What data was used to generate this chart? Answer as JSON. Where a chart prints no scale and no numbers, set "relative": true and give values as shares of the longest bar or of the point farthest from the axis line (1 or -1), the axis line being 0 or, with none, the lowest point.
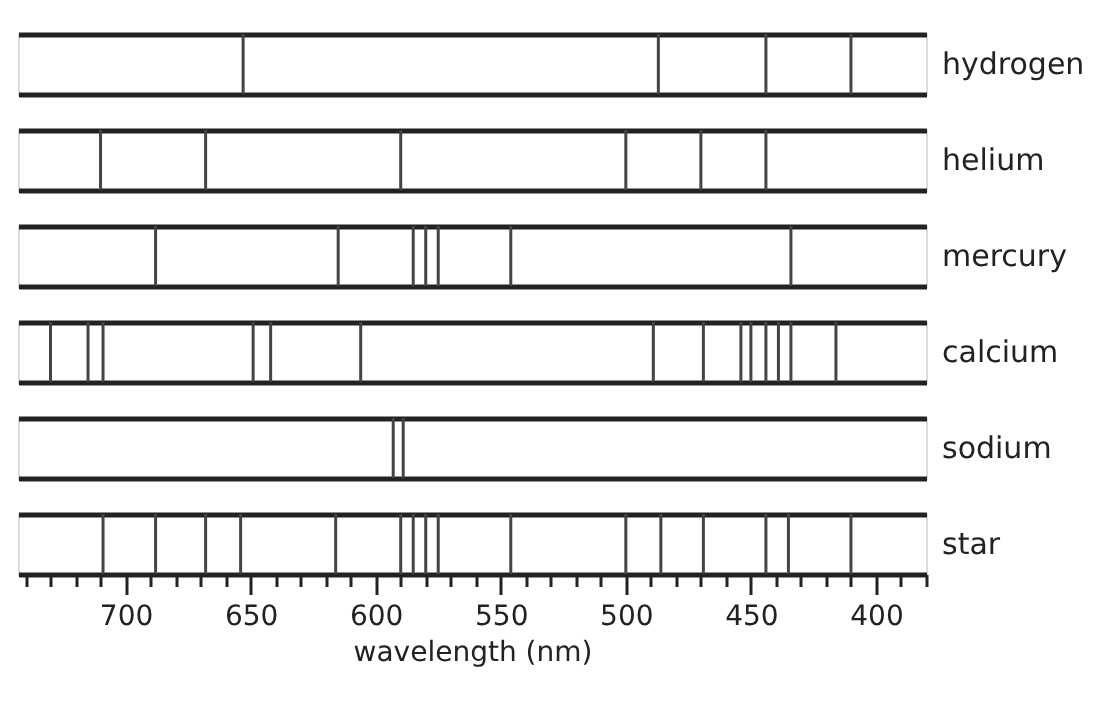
{
  "chart_data": [
    {
      "type": "bar",
      "relative": true,
      "xlim": [
        743,
        380
      ],
      "tick_labels": false,
      "x": [
        653,
        487,
        444,
        410
      ],
      "series": [
        {
          "name": "hydrogen",
          "color": "#444444",
          "values": [
            1,
            1,
            1,
            1
          ]
        }
      ]
    },
    {
      "type": "bar",
      "relative": true,
      "xlim": [
        743,
        380
      ],
      "tick_labels": false,
      "x": [
        710,
        668,
        590,
        500,
        470,
        444
      ],
      "series": [
        {
          "name": "helium",
          "color": "#444444",
          "values": [
            1,
            1,
            1,
            1,
            1,
            1
          ]
        }
      ]
    },
    {
      "type": "bar",
      "relative": true,
      "xlim": [
        743,
        380
      ],
      "tick_labels": false,
      "x": [
        688,
        615,
        585,
        580,
        575,
        546,
        434
      ],
      "series": [
        {
          "name": "mercury",
          "color": "#444444",
          "values": [
            1,
            1,
            1,
            1,
            1,
            1,
            1
          ]
        }
      ]
    },
    {
      "type": "bar",
      "relative": true,
      "xlim": [
        743,
        380
      ],
      "tick_labels": false,
      "x": [
        730,
        715,
        709,
        649,
        642,
        606,
        489,
        469,
        454,
        450,
        444,
        439,
        434,
        416
      ],
      "series": [
        {
          "name": "calcium",
          "color": "#444444",
          "values": [
            1,
            1,
            1,
            1,
            1,
            1,
            1,
            1,
            1,
            1,
            1,
            1,
            1,
            1
          ]
        }
      ]
    },
    {
      "type": "bar",
      "relative": true,
      "xlim": [
        743,
        380
      ],
      "tick_labels": false,
      "x": [
        593,
        589
      ],
      "series": [
        {
          "name": "sodium",
          "color": "#444444",
          "values": [
            1,
            1
          ]
        }
      ]
    },
    {
      "type": "bar",
      "relative": true,
      "xlabel": "wavelength (nm)",
      "xlim": [
        743,
        380
      ],
      "tick_labels": "x",
      "xticks": [
        {
          "value": 740,
          "label": null
        },
        {
          "value": 730,
          "label": null
        },
        {
          "value": 720,
          "label": null
        },
        {
          "value": 710,
          "label": null
        },
        700,
        {
          "value": 690,
          "label": null
        },
        {
          "value": 680,
          "label": null
        },
        {
          "value": 670,
          "label": null
        },
        {
          "value": 660,
          "label": null
        },
        650,
        {
          "value": 640,
          "label": null
        },
        {
          "value": 630,
          "label": null
        },
        {
          "value": 620,
          "label": null
        },
        {
          "value": 610,
          "label": null
        },
        600,
        {
          "value": 590,
          "label": null
        },
        {
          "value": 580,
          "label": null
        },
        {
          "value": 570,
          "label": null
        },
        {
          "value": 560,
          "label": null
        },
        550,
        {
          "value": 540,
          "label": null
        },
        {
          "value": 530,
          "label": null
        },
        {
          "value": 520,
          "label": null
        },
        {
          "value": 510,
          "label": null
        },
        500,
        {
          "value": 490,
          "label": null
        },
        {
          "value": 480,
          "label": null
        },
        {
          "value": 470,
          "label": null
        },
        {
          "value": 460,
          "label": null
        },
        450,
        {
          "value": 440,
          "label": null
        },
        {
          "value": 430,
          "label": null
        },
        {
          "value": 420,
          "label": null
        },
        {
          "value": 410,
          "label": null
        },
        400,
        {
          "value": 390,
          "label": null
        },
        {
          "value": 380,
          "label": null
        }
      ],
      "x": [
        709,
        688,
        668,
        654,
        616,
        590,
        585,
        580,
        575,
        546,
        500,
        486,
        469,
        444,
        435,
        410
      ],
      "series": [
        {
          "name": "star",
          "color": "#444444",
          "values": [
            1,
            1,
            1,
            1,
            1,
            1,
            1,
            1,
            1,
            1,
            1,
            1,
            1,
            1,
            1,
            1
          ]
        }
      ]
    }
  ]
}
